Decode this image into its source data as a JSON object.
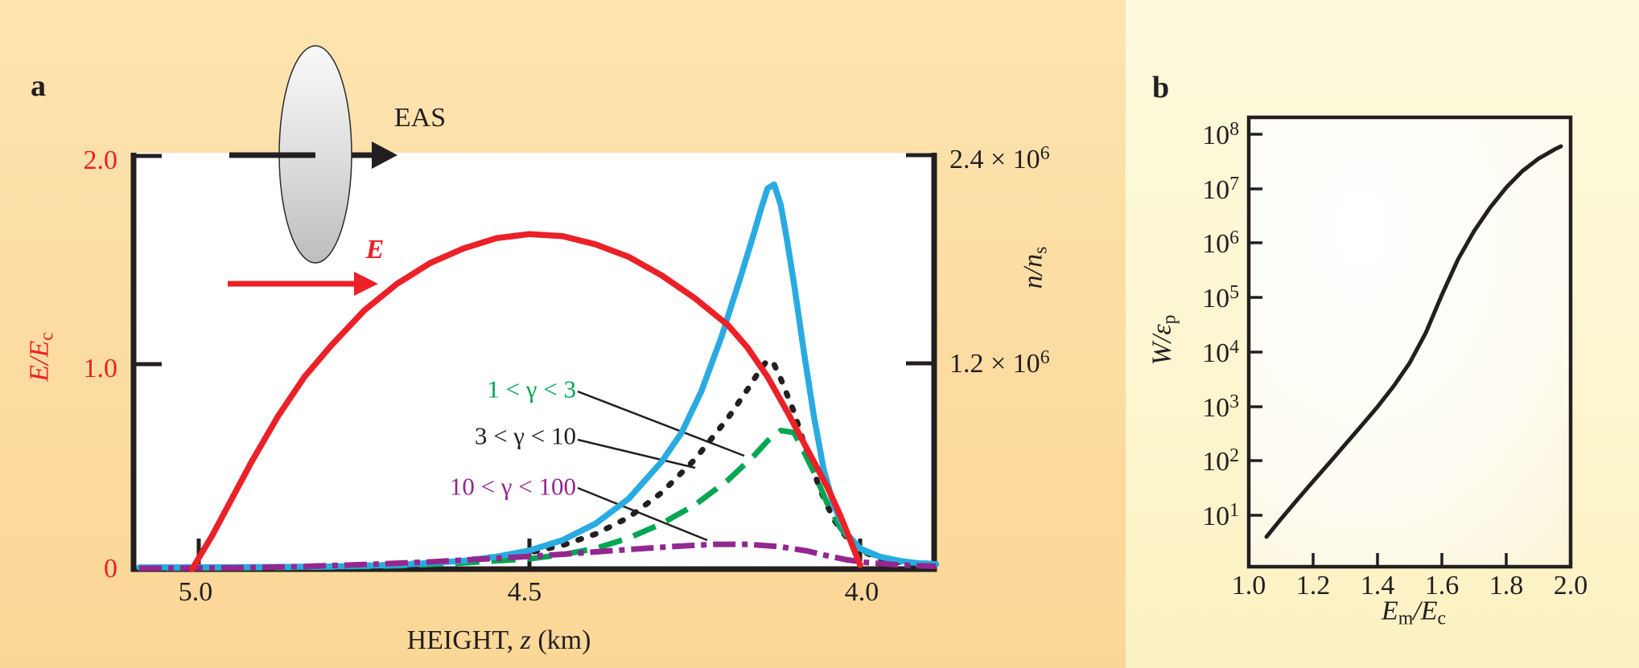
{
  "panel_a": {
    "letter": "a",
    "eas_label": "EAS",
    "field_arrow_label": "E",
    "left_axis": {
      "label_main": "E/E",
      "label_sub": "c",
      "ticks": [
        "2.0",
        "1.0",
        "0"
      ],
      "color": "#ec2027"
    },
    "right_axis": {
      "label_main": "n/n",
      "label_sub": "s",
      "ticks": [
        {
          "mantissa": "2.4 × 10",
          "exp": "6"
        },
        {
          "mantissa": "1.2 × 10",
          "exp": "6"
        }
      ]
    },
    "x_axis": {
      "ticks": [
        "5.0",
        "4.5",
        "4.0"
      ],
      "label_prefix": "HEIGHT, ",
      "label_var": "z",
      "label_suffix": " (km)"
    },
    "legend": [
      {
        "text": "1 < γ < 3",
        "color": "#00a651"
      },
      {
        "text": "3 < γ < 10",
        "color": "#231f20"
      },
      {
        "text": "10 < γ < 100",
        "color": "#93278f"
      }
    ]
  },
  "panel_b": {
    "letter": "b",
    "y_axis": {
      "label_main": "W/ε",
      "label_sub": "p",
      "ticks": [
        {
          "base": "10",
          "exp": "8"
        },
        {
          "base": "10",
          "exp": "7"
        },
        {
          "base": "10",
          "exp": "6"
        },
        {
          "base": "10",
          "exp": "5"
        },
        {
          "base": "10",
          "exp": "4"
        },
        {
          "base": "10",
          "exp": "3"
        },
        {
          "base": "10",
          "exp": "2"
        },
        {
          "base": "10",
          "exp": "1"
        }
      ]
    },
    "x_axis": {
      "ticks": [
        "1.0",
        "1.2",
        "1.4",
        "1.6",
        "1.8",
        "2.0"
      ],
      "label_p1": "E",
      "label_s1": "m",
      "label_p2": "/E",
      "label_s2": "c"
    }
  },
  "chart_data": [
    {
      "type": "line",
      "title": "Panel a: electric field and runaway-electron densities in EAS vs height",
      "xlabel": "HEIGHT, z (km)",
      "x_inverted": true,
      "x_ticks": [
        5.0,
        4.5,
        4.0
      ],
      "ylabel_left": "E/E_c",
      "y_left_ticks": [
        0,
        1.0,
        2.0
      ],
      "ylabel_right": "n/n_s",
      "y_right_ticks": [
        1200000,
        2400000
      ],
      "y_right_equals_left_scale": "E/E_c 2.0 aligns with n/n_s 2.4e6",
      "series": [
        {
          "id": "g2",
          "name": "3 < γ < 10",
          "color": "#231f20",
          "style": "dotted",
          "points": [
            [
              5.07,
              0.006
            ],
            [
              4.9,
              0.009
            ],
            [
              4.8,
              0.013
            ],
            [
              4.7,
              0.022
            ],
            [
              4.6,
              0.042
            ],
            [
              4.5,
              0.08
            ],
            [
              4.45,
              0.115
            ],
            [
              4.4,
              0.17
            ],
            [
              4.35,
              0.25
            ],
            [
              4.3,
              0.37
            ],
            [
              4.25,
              0.53
            ],
            [
              4.2,
              0.73
            ],
            [
              4.17,
              0.87
            ],
            [
              4.15,
              0.97
            ],
            [
              4.14,
              1.01
            ],
            [
              4.13,
              0.99
            ],
            [
              4.12,
              0.92
            ],
            [
              4.1,
              0.76
            ],
            [
              4.08,
              0.56
            ],
            [
              4.06,
              0.38
            ],
            [
              4.04,
              0.24
            ],
            [
              4.02,
              0.15
            ],
            [
              4.0,
              0.09
            ],
            [
              3.97,
              0.05
            ],
            [
              3.94,
              0.033
            ],
            [
              3.91,
              0.024
            ],
            [
              3.885,
              0.02
            ]
          ]
        },
        {
          "id": "g1",
          "name": "1 < γ < 3",
          "color": "#00a651",
          "style": "dashed",
          "points": [
            [
              5.05,
              0.005
            ],
            [
              4.9,
              0.007
            ],
            [
              4.8,
              0.01
            ],
            [
              4.7,
              0.016
            ],
            [
              4.6,
              0.03
            ],
            [
              4.5,
              0.05
            ],
            [
              4.45,
              0.07
            ],
            [
              4.4,
              0.1
            ],
            [
              4.35,
              0.15
            ],
            [
              4.3,
              0.22
            ],
            [
              4.25,
              0.31
            ],
            [
              4.2,
              0.43
            ],
            [
              4.16,
              0.55
            ],
            [
              4.14,
              0.62
            ],
            [
              4.12,
              0.67
            ],
            [
              4.1,
              0.66
            ],
            [
              4.09,
              0.6
            ],
            [
              4.07,
              0.47
            ],
            [
              4.05,
              0.32
            ],
            [
              4.03,
              0.2
            ],
            [
              4.01,
              0.12
            ],
            [
              3.99,
              0.08
            ],
            [
              3.96,
              0.05
            ],
            [
              3.93,
              0.035
            ],
            [
              3.9,
              0.028
            ],
            [
              3.885,
              0.025
            ]
          ]
        },
        {
          "id": "nns",
          "name": "n/n_s",
          "color": "#29abe2",
          "style": "solid",
          "points": [
            [
              5.09,
              0.008
            ],
            [
              4.9,
              0.01
            ],
            [
              4.8,
              0.013
            ],
            [
              4.7,
              0.02
            ],
            [
              4.6,
              0.04
            ],
            [
              4.55,
              0.06
            ],
            [
              4.5,
              0.09
            ],
            [
              4.45,
              0.14
            ],
            [
              4.4,
              0.22
            ],
            [
              4.35,
              0.34
            ],
            [
              4.3,
              0.52
            ],
            [
              4.27,
              0.66
            ],
            [
              4.24,
              0.86
            ],
            [
              4.21,
              1.12
            ],
            [
              4.18,
              1.42
            ],
            [
              4.16,
              1.63
            ],
            [
              4.15,
              1.74
            ],
            [
              4.14,
              1.84
            ],
            [
              4.13,
              1.86
            ],
            [
              4.12,
              1.76
            ],
            [
              4.11,
              1.58
            ],
            [
              4.1,
              1.38
            ],
            [
              4.085,
              1.05
            ],
            [
              4.07,
              0.74
            ],
            [
              4.055,
              0.48
            ],
            [
              4.04,
              0.31
            ],
            [
              4.02,
              0.17
            ],
            [
              4.0,
              0.1
            ],
            [
              3.97,
              0.06
            ],
            [
              3.94,
              0.04
            ],
            [
              3.91,
              0.028
            ],
            [
              3.885,
              0.024
            ]
          ]
        },
        {
          "id": "g3",
          "name": "10 < γ < 100",
          "color": "#93278f",
          "style": "dashdot",
          "points": [
            [
              5.09,
              0.004
            ],
            [
              4.95,
              0.006
            ],
            [
              4.85,
              0.012
            ],
            [
              4.75,
              0.022
            ],
            [
              4.65,
              0.035
            ],
            [
              4.55,
              0.052
            ],
            [
              4.45,
              0.072
            ],
            [
              4.35,
              0.095
            ],
            [
              4.28,
              0.11
            ],
            [
              4.22,
              0.12
            ],
            [
              4.17,
              0.12
            ],
            [
              4.12,
              0.108
            ],
            [
              4.08,
              0.088
            ],
            [
              4.05,
              0.065
            ],
            [
              4.02,
              0.045
            ],
            [
              3.99,
              0.032
            ],
            [
              3.95,
              0.022
            ],
            [
              3.91,
              0.016
            ],
            [
              3.885,
              0.014
            ]
          ]
        },
        {
          "id": "efield",
          "name": "E (thundercloud electric field, E/E_c)",
          "color": "#ec2027",
          "style": "solid",
          "points": [
            [
              5.01,
              0.0
            ],
            [
              4.98,
              0.16
            ],
            [
              4.95,
              0.34
            ],
            [
              4.92,
              0.52
            ],
            [
              4.88,
              0.74
            ],
            [
              4.84,
              0.93
            ],
            [
              4.8,
              1.08
            ],
            [
              4.75,
              1.25
            ],
            [
              4.7,
              1.38
            ],
            [
              4.65,
              1.48
            ],
            [
              4.6,
              1.55
            ],
            [
              4.55,
              1.6
            ],
            [
              4.5,
              1.62
            ],
            [
              4.45,
              1.61
            ],
            [
              4.4,
              1.57
            ],
            [
              4.35,
              1.51
            ],
            [
              4.3,
              1.42
            ],
            [
              4.25,
              1.31
            ],
            [
              4.2,
              1.18
            ],
            [
              4.17,
              1.07
            ],
            [
              4.14,
              0.93
            ],
            [
              4.11,
              0.76
            ],
            [
              4.08,
              0.58
            ],
            [
              4.05,
              0.4
            ],
            [
              4.03,
              0.26
            ],
            [
              4.01,
              0.1
            ],
            [
              4.0,
              0.02
            ]
          ]
        }
      ]
    },
    {
      "type": "line",
      "title": "Panel b: number of runaway electrons vs field strength",
      "xlabel": "E_m/E_c",
      "x_ticks": [
        1.0,
        1.2,
        1.4,
        1.6,
        1.8,
        2.0
      ],
      "ylabel": "W/ε_p",
      "y_scale": "log",
      "y_ticks": [
        10,
        100,
        1000,
        10000,
        100000,
        1000000,
        10000000,
        100000000
      ],
      "series": [
        {
          "id": "wcurve",
          "name": "W/ε_p",
          "color": "#231f20",
          "style": "solidthin",
          "points": [
            [
              1.055,
              4.0
            ],
            [
              1.1,
              8.5
            ],
            [
              1.15,
              19
            ],
            [
              1.2,
              42
            ],
            [
              1.25,
              91
            ],
            [
              1.3,
              200
            ],
            [
              1.35,
              440
            ],
            [
              1.4,
              980
            ],
            [
              1.45,
              2340
            ],
            [
              1.5,
              6300
            ],
            [
              1.55,
              22400
            ],
            [
              1.6,
              112000
            ],
            [
              1.65,
              500000
            ],
            [
              1.7,
              1660000
            ],
            [
              1.75,
              4500000
            ],
            [
              1.8,
              10500000
            ],
            [
              1.85,
              21000000
            ],
            [
              1.9,
              35500000
            ],
            [
              1.95,
              52500000
            ],
            [
              1.97,
              60000000
            ]
          ]
        }
      ]
    }
  ]
}
